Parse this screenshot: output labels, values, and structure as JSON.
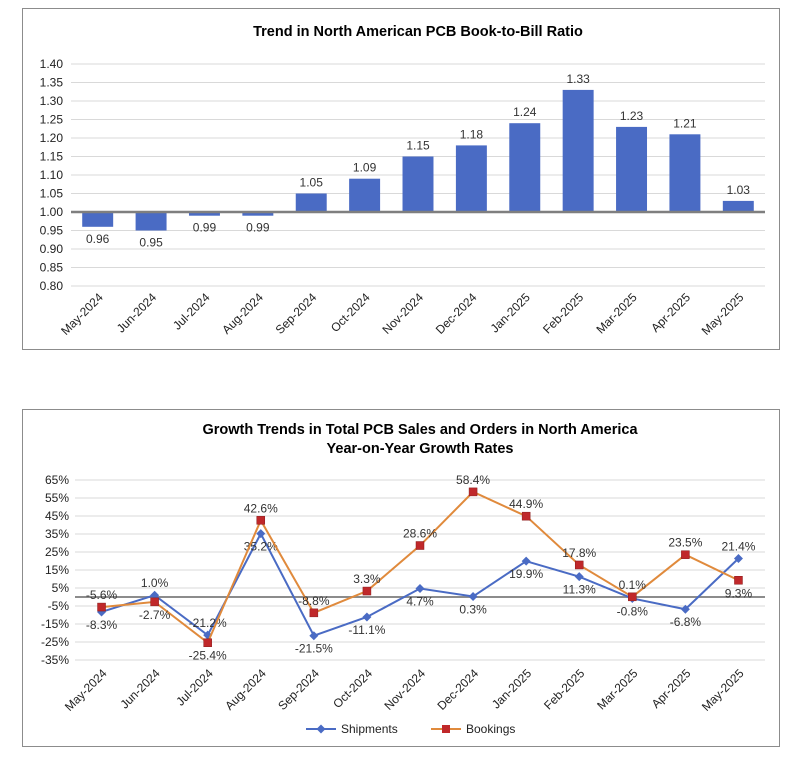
{
  "chart_data": [
    {
      "type": "bar",
      "title": "Trend in North American PCB Book-to-Bill Ratio",
      "categories": [
        "May-2024",
        "Jun-2024",
        "Jul-2024",
        "Aug-2024",
        "Sep-2024",
        "Oct-2024",
        "Nov-2024",
        "Dec-2024",
        "Jan-2025",
        "Feb-2025",
        "Mar-2025",
        "Apr-2025",
        "May-2025"
      ],
      "values": [
        0.96,
        0.95,
        0.99,
        0.99,
        1.05,
        1.09,
        1.15,
        1.18,
        1.24,
        1.33,
        1.23,
        1.21,
        1.03
      ],
      "data_labels": [
        "0.96",
        "0.95",
        "0.99",
        "0.99",
        "1.05",
        "1.09",
        "1.15",
        "1.18",
        "1.24",
        "1.33",
        "1.23",
        "1.21",
        "1.03"
      ],
      "baseline": 1.0,
      "ylim": [
        0.8,
        1.4
      ],
      "yticks": [
        "0.80",
        "0.85",
        "0.90",
        "0.95",
        "1.00",
        "1.05",
        "1.10",
        "1.15",
        "1.20",
        "1.25",
        "1.30",
        "1.35",
        "1.40"
      ],
      "grid": true,
      "bar_color": "#4a6bc4"
    },
    {
      "type": "line",
      "title": "Growth Trends in Total PCB Sales and Orders in North America",
      "subtitle": "Year-on-Year Growth Rates",
      "categories": [
        "May-2024",
        "Jun-2024",
        "Jul-2024",
        "Aug-2024",
        "Sep-2024",
        "Oct-2024",
        "Nov-2024",
        "Dec-2024",
        "Jan-2025",
        "Feb-2025",
        "Mar-2025",
        "Apr-2025",
        "May-2025"
      ],
      "ylim": [
        -35,
        65
      ],
      "yticks": [
        "65%",
        "55%",
        "45%",
        "35%",
        "25%",
        "15%",
        "5%",
        "-5%",
        "-15%",
        "-25%",
        "-35%"
      ],
      "grid": true,
      "legend_position": "bottom",
      "series": [
        {
          "name": "Shipments",
          "color": "#4a6bc4",
          "marker": "diamond",
          "values": [
            -8.3,
            1.0,
            -21.2,
            35.2,
            -21.5,
            -11.1,
            4.7,
            0.3,
            19.9,
            11.3,
            -0.8,
            -6.8,
            21.4
          ],
          "labels": [
            "-8.3%",
            "1.0%",
            "-21.2%",
            "35.2%",
            "-21.5%",
            "-11.1%",
            "4.7%",
            "0.3%",
            "19.9%",
            "11.3%",
            "-0.8%",
            "-6.8%",
            "21.4%"
          ]
        },
        {
          "name": "Bookings",
          "color": "#e08a3c",
          "marker_color": "#c0282a",
          "marker": "square",
          "values": [
            -5.6,
            -2.7,
            -25.4,
            42.6,
            -8.8,
            3.3,
            28.6,
            58.4,
            44.9,
            17.8,
            0.1,
            23.5,
            9.3
          ],
          "labels": [
            "-5.6%",
            "-2.7%",
            "-25.4%",
            "42.6%",
            "-8.8%",
            "3.3%",
            "28.6%",
            "58.4%",
            "44.9%",
            "17.8%",
            "0.1%",
            "23.5%",
            "9.3%"
          ]
        }
      ]
    }
  ]
}
